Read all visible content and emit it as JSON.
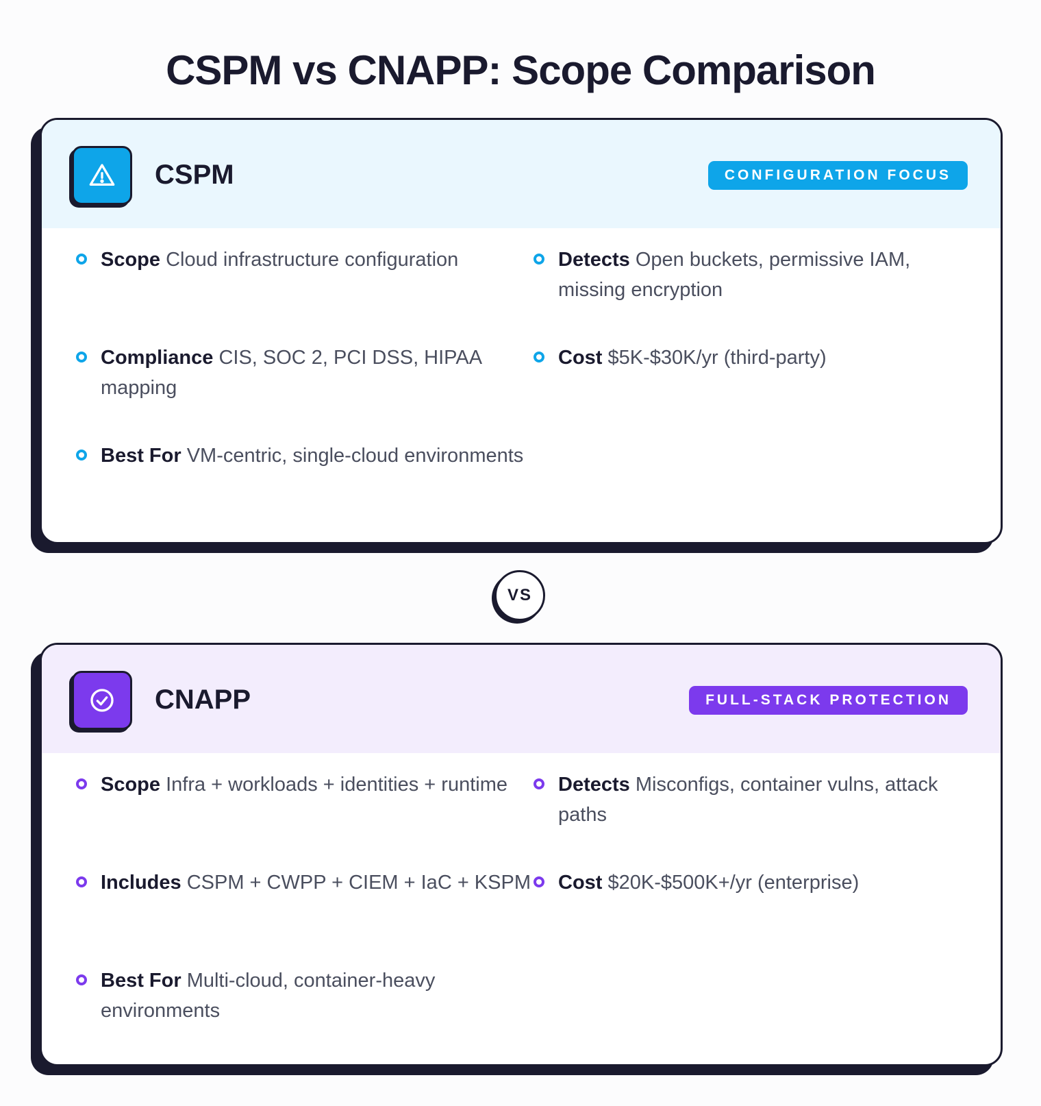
{
  "title": "CSPM vs CNAPP: Scope Comparison",
  "vs": "VS",
  "cards": [
    {
      "name": "CSPM",
      "badge": "CONFIGURATION FOCUS",
      "icon": "warning-triangle-icon",
      "accent": "#0ea5e9",
      "items": [
        {
          "label": "Scope",
          "text": "Cloud infrastructure configuration"
        },
        {
          "label": "Detects",
          "text": "Open buckets, permissive IAM, missing encryption"
        },
        {
          "label": "Compliance",
          "text": "CIS, SOC 2, PCI DSS, HIPAA mapping"
        },
        {
          "label": "Cost",
          "text": "$5K-$30K/yr (third-party)"
        },
        {
          "label": "Best For",
          "text": "VM-centric, single-cloud environments"
        }
      ]
    },
    {
      "name": "CNAPP",
      "badge": "FULL-STACK PROTECTION",
      "icon": "check-circle-icon",
      "accent": "#7c3aed",
      "items": [
        {
          "label": "Scope",
          "text": "Infra + workloads + identities + runtime"
        },
        {
          "label": "Detects",
          "text": "Misconfigs, container vulns, attack paths"
        },
        {
          "label": "Includes",
          "text": "CSPM + CWPP + CIEM + IaC + KSPM"
        },
        {
          "label": "Cost",
          "text": "$20K-$500K+/yr (enterprise)"
        },
        {
          "label": "Best For",
          "text": "Multi-cloud, container-heavy environments"
        }
      ]
    }
  ]
}
